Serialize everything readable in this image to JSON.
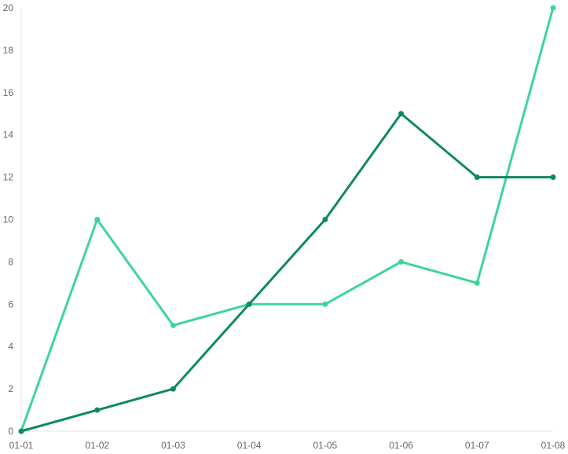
{
  "chart_data": {
    "type": "line",
    "title": "",
    "xlabel": "",
    "ylabel": "",
    "categories": [
      "01-01",
      "01-02",
      "01-03",
      "01-04",
      "01-05",
      "01-06",
      "01-07",
      "01-08"
    ],
    "ylim": [
      0,
      20
    ],
    "yticks": [
      0,
      2,
      4,
      6,
      8,
      10,
      12,
      14,
      16,
      18,
      20
    ],
    "grid": false,
    "legend": "none",
    "series": [
      {
        "color": "#3dd598",
        "values": [
          0,
          10,
          5,
          6,
          6,
          8,
          7,
          20
        ]
      },
      {
        "color": "#0e8a5f",
        "values": [
          0,
          1,
          2,
          6,
          10,
          15,
          12,
          12
        ]
      }
    ]
  }
}
